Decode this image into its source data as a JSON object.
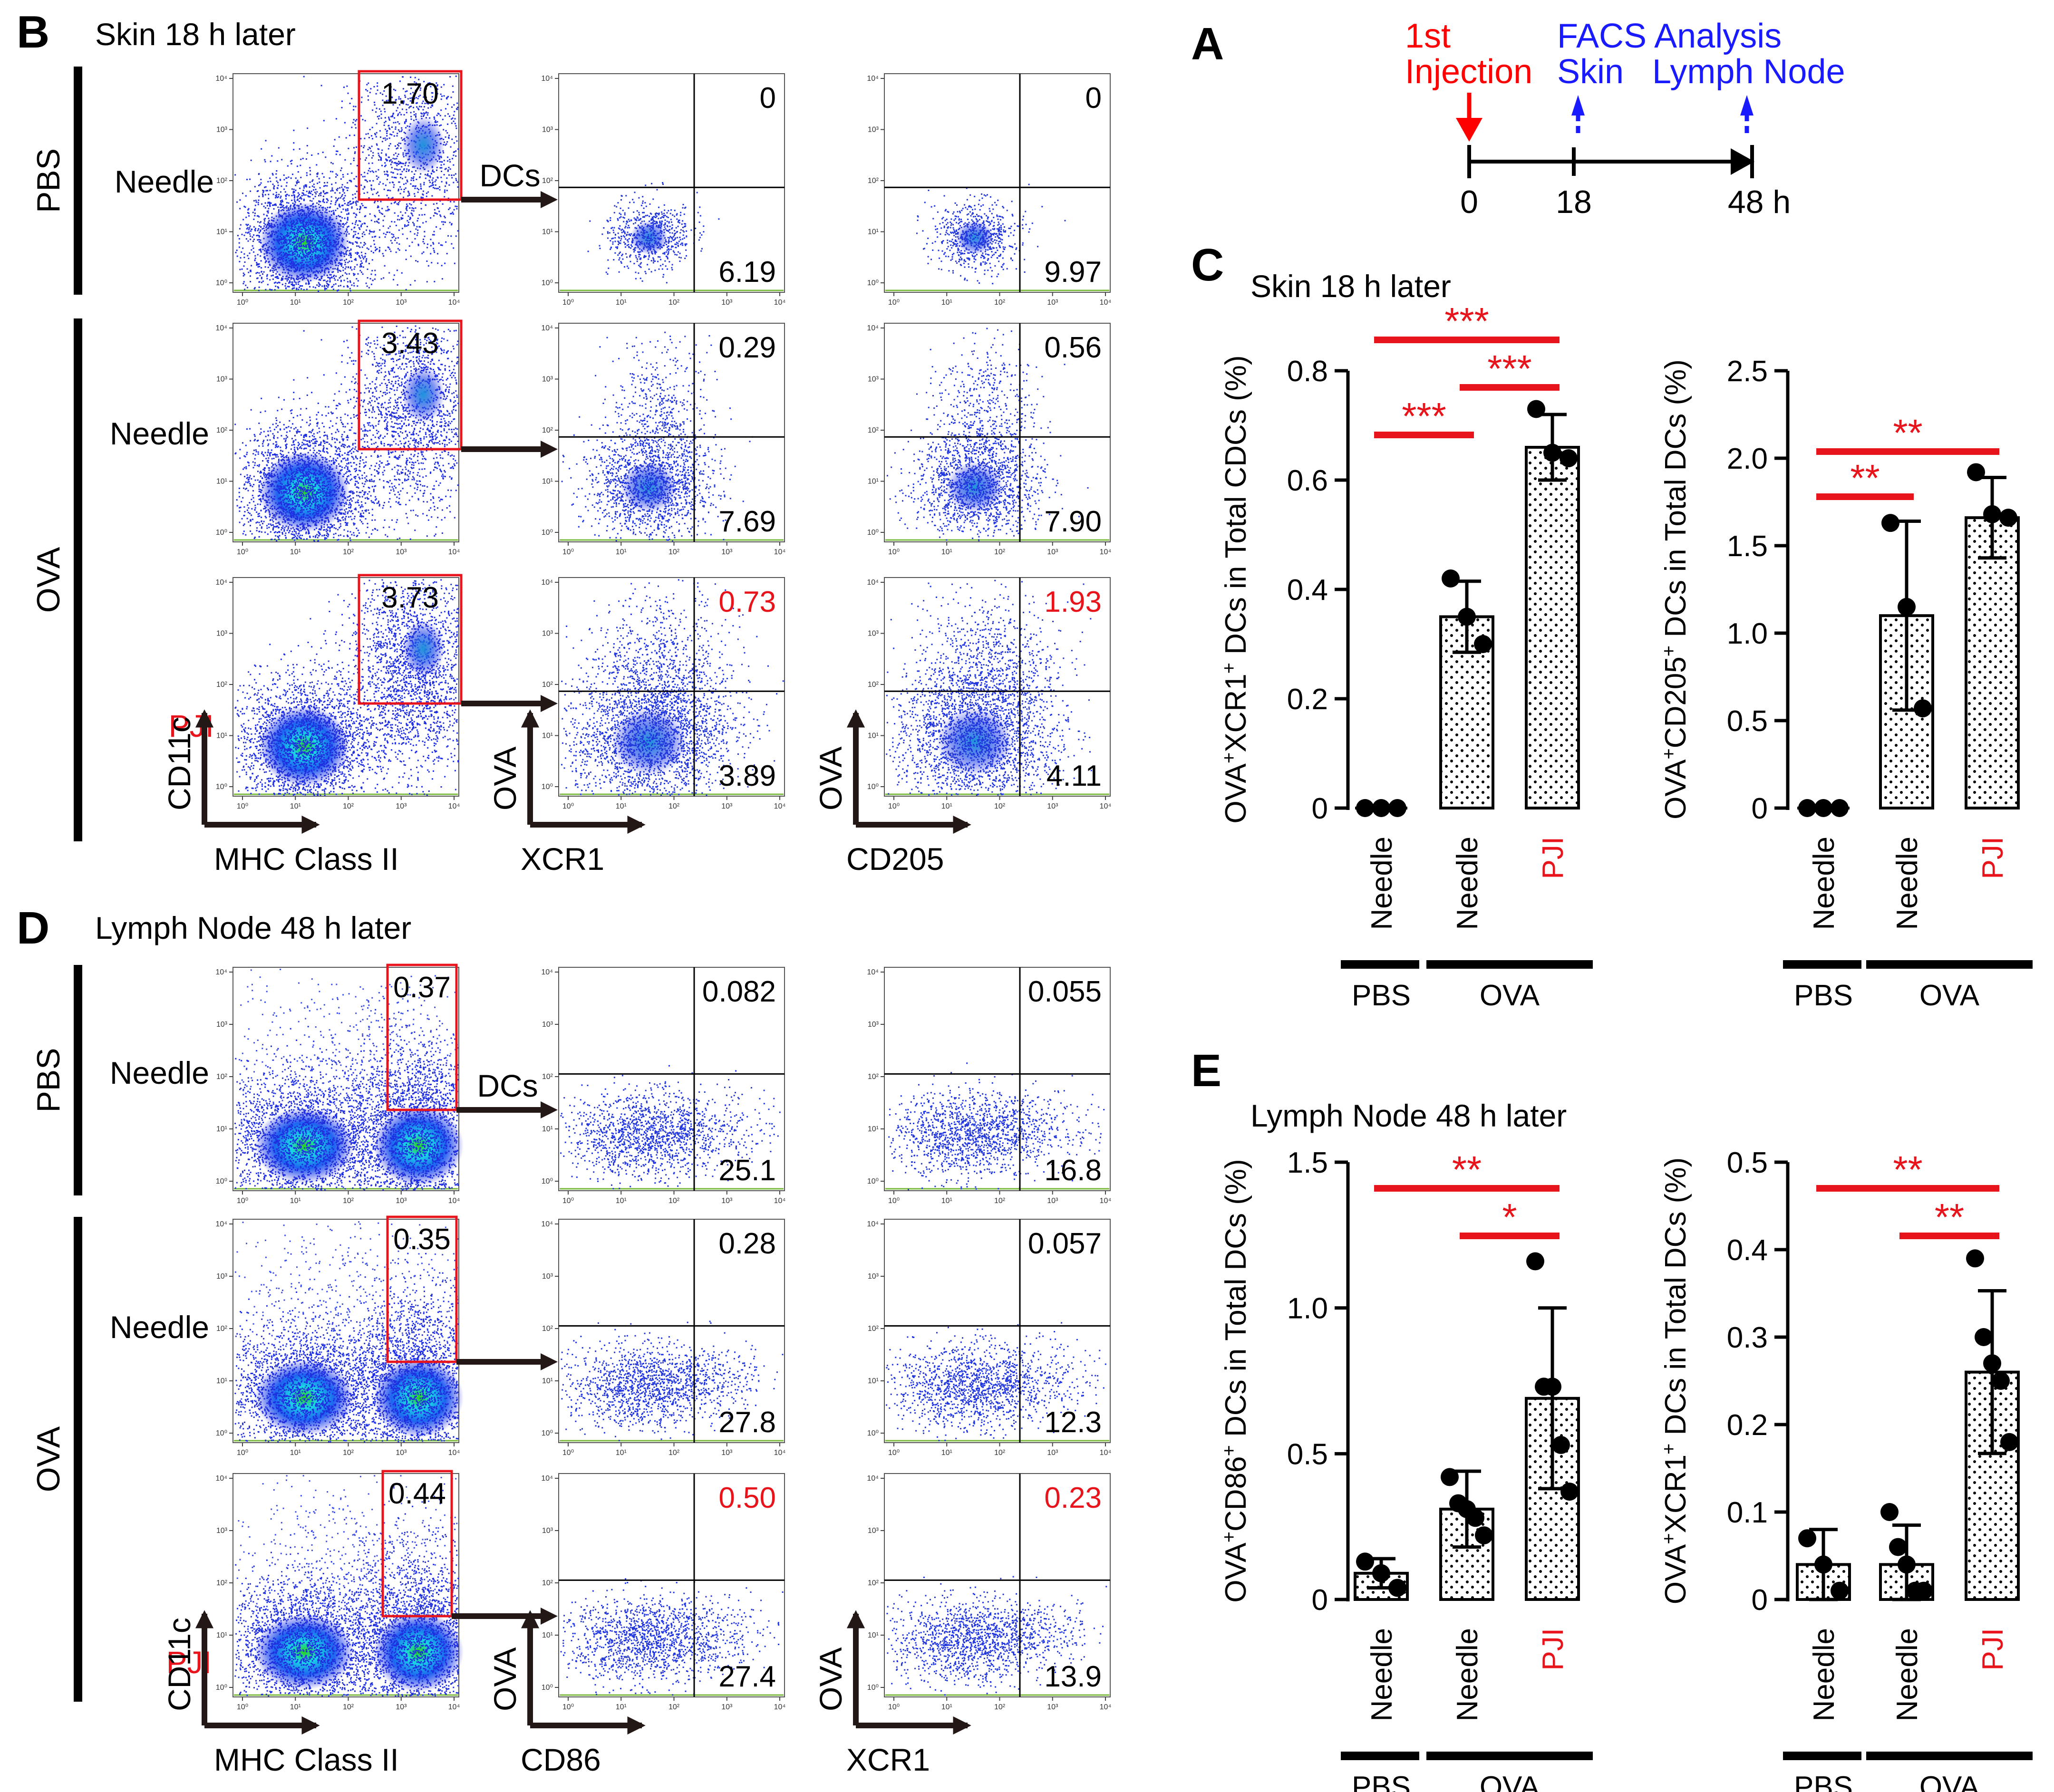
{
  "panels": {
    "A": {
      "letter": "A",
      "lbl_injection_1": "1st",
      "lbl_injection_2": "Injection",
      "lbl_analysis": "FACS Analysis",
      "lbl_skin": "Skin",
      "lbl_lymph": "Lymph Node",
      "ticks": [
        "0",
        "18",
        "48 h"
      ],
      "colors": {
        "injection": "#ff0000",
        "analysis": "#1a1aff"
      }
    },
    "B": {
      "letter": "B",
      "title": "Skin 18 h later",
      "dcs_label": "DCs",
      "groups": [
        "PBS",
        "OVA"
      ],
      "rows": [
        {
          "label": "Needle",
          "gate": "1.70",
          "xcr1": {
            "top": "0",
            "bottom": "6.19"
          },
          "cd205": {
            "top": "0",
            "bottom": "9.97"
          }
        },
        {
          "label": "Needle",
          "gate": "3.43",
          "xcr1": {
            "top": "0.29",
            "bottom": "7.69"
          },
          "cd205": {
            "top": "0.56",
            "bottom": "7.90"
          }
        },
        {
          "label": "PJI",
          "gate": "3.73",
          "xcr1": {
            "top": "0.73",
            "bottom": "3.89"
          },
          "cd205": {
            "top": "1.93",
            "bottom": "4.11"
          }
        }
      ],
      "axes": {
        "col1_y": "CD11c",
        "col1_x": "MHC Class II",
        "col2_y": "OVA",
        "col2_x": "XCR1",
        "col3_y": "OVA",
        "col3_x": "CD205"
      }
    },
    "D": {
      "letter": "D",
      "title": "Lymph  Node 48 h later",
      "dcs_label": "DCs",
      "groups": [
        "PBS",
        "OVA"
      ],
      "rows": [
        {
          "label": "Needle",
          "gate": "0.37",
          "cd86": {
            "top": "0.082",
            "bottom": "25.1"
          },
          "xcr1": {
            "top": "0.055",
            "bottom": "16.8"
          }
        },
        {
          "label": "Needle",
          "gate": "0.35",
          "cd86": {
            "top": "0.28",
            "bottom": "27.8"
          },
          "xcr1": {
            "top": "0.057",
            "bottom": "12.3"
          }
        },
        {
          "label": "PJI",
          "gate": "0.44",
          "cd86": {
            "top": "0.50",
            "bottom": "27.4"
          },
          "xcr1": {
            "top": "0.23",
            "bottom": "13.9"
          }
        }
      ],
      "axes": {
        "col1_y": "CD11c",
        "col1_x": "MHC Class II",
        "col2_y": "OVA",
        "col2_x": "CD86",
        "col3_y": "OVA",
        "col3_x": "XCR1"
      }
    },
    "C": {
      "letter": "C",
      "title": "Skin 18 h later"
    },
    "E": {
      "letter": "E",
      "title": "Lymph  Node 48 h later"
    },
    "tick_decades": [
      "10⁰",
      "10¹",
      "10²",
      "10³",
      "10⁴"
    ],
    "colors": {
      "highlight": "#e8141c",
      "black": "#000000",
      "gate": "#e8141c"
    }
  },
  "chart_data": [
    {
      "id": "C1",
      "type": "bar",
      "title": "",
      "ylabel_parts": [
        "OVA",
        "+",
        "XCR1",
        "+",
        " DCs in Total CDCs (%)"
      ],
      "categories": [
        "Needle",
        "Needle",
        "PJI"
      ],
      "groups": [
        "PBS",
        "OVA"
      ],
      "values": [
        0,
        0.35,
        0.66
      ],
      "errors": [
        0,
        0.065,
        0.06
      ],
      "points": [
        [
          0,
          0,
          0
        ],
        [
          0.42,
          0.35,
          0.3
        ],
        [
          0.73,
          0.65,
          0.64
        ]
      ],
      "ylim": [
        0,
        0.8
      ],
      "ticks": [
        "0",
        "0.2",
        "0.4",
        "0.6",
        "0.8"
      ],
      "significance": [
        {
          "from": 0,
          "to": 2,
          "label": "***"
        },
        {
          "from": 1,
          "to": 2,
          "label": "***"
        },
        {
          "from": 0,
          "to": 1,
          "label": "***"
        }
      ]
    },
    {
      "id": "C2",
      "type": "bar",
      "title": "",
      "ylabel_parts": [
        "OVA",
        "+",
        "CD205",
        "+",
        " DCs in Total DCs (%)"
      ],
      "categories": [
        "Needle",
        "Needle",
        "PJI"
      ],
      "groups": [
        "PBS",
        "OVA"
      ],
      "values": [
        0,
        1.1,
        1.66
      ],
      "errors": [
        0,
        0.54,
        0.23
      ],
      "points": [
        [
          0,
          0,
          0
        ],
        [
          1.63,
          1.15,
          0.57
        ],
        [
          1.92,
          1.68,
          1.66
        ]
      ],
      "ylim": [
        0,
        2.5
      ],
      "ticks": [
        "0",
        "0.5",
        "1.0",
        "1.5",
        "2.0",
        "2.5"
      ],
      "significance": [
        {
          "from": 0,
          "to": 2,
          "label": "**"
        },
        {
          "from": 0,
          "to": 1,
          "label": "**"
        }
      ]
    },
    {
      "id": "E1",
      "type": "bar",
      "title": "",
      "ylabel_parts": [
        "OVA",
        "+",
        "CD86",
        "+",
        " DCs in Total DCs (%)"
      ],
      "categories": [
        "Needle",
        "Needle",
        "PJI"
      ],
      "groups": [
        "PBS",
        "OVA"
      ],
      "values": [
        0.09,
        0.31,
        0.69
      ],
      "errors": [
        0.05,
        0.13,
        0.31
      ],
      "points": [
        [
          0.13,
          0.09,
          0.04
        ],
        [
          0.42,
          0.33,
          0.31,
          0.28,
          0.22
        ],
        [
          1.16,
          0.73,
          0.73,
          0.53,
          0.37
        ]
      ],
      "ylim": [
        0,
        1.5
      ],
      "ticks": [
        "0",
        "0.5",
        "1.0",
        "1.5"
      ],
      "significance": [
        {
          "from": 0,
          "to": 2,
          "label": "**"
        },
        {
          "from": 1,
          "to": 2,
          "label": "*"
        }
      ]
    },
    {
      "id": "E2",
      "type": "bar",
      "title": "",
      "ylabel_parts": [
        "OVA",
        "+",
        "XCR1",
        "+",
        " DCs in Total DCs (%)"
      ],
      "categories": [
        "Needle",
        "Needle",
        "PJI"
      ],
      "groups": [
        "PBS",
        "OVA"
      ],
      "values": [
        0.04,
        0.04,
        0.26
      ],
      "errors": [
        0.04,
        0.045,
        0.093
      ],
      "points": [
        [
          0.07,
          0.04,
          0.01
        ],
        [
          0.1,
          0.06,
          0.04,
          0.01,
          0.01
        ],
        [
          0.39,
          0.3,
          0.27,
          0.25,
          0.18
        ]
      ],
      "ylim": [
        0,
        0.5
      ],
      "ticks": [
        "0",
        "0.1",
        "0.2",
        "0.3",
        "0.4",
        "0.5"
      ],
      "significance": [
        {
          "from": 0,
          "to": 2,
          "label": "**"
        },
        {
          "from": 1,
          "to": 2,
          "label": "**"
        }
      ]
    }
  ]
}
